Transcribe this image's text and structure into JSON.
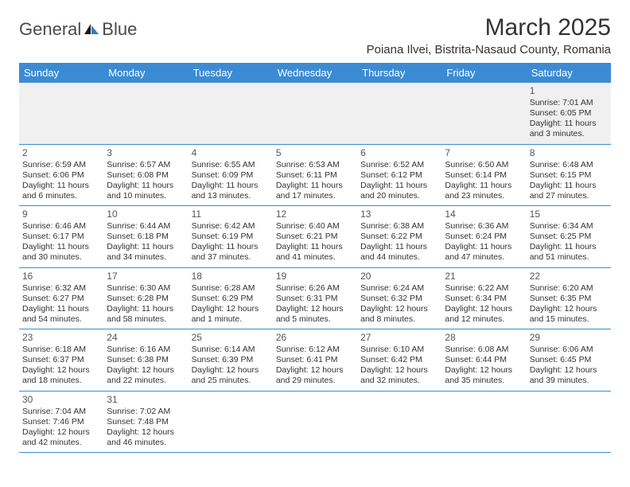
{
  "logo": {
    "textA": "General",
    "textB": "Blue"
  },
  "title": "March 2025",
  "location": "Poiana Ilvei, Bistrita-Nasaud County, Romania",
  "colors": {
    "headerBlue": "#3b8bd4",
    "logoBlue": "#2f7cc4",
    "text": "#333333",
    "grayBg": "#f0f0f0",
    "border": "#3b8bd4"
  },
  "weekdays": [
    "Sunday",
    "Monday",
    "Tuesday",
    "Wednesday",
    "Thursday",
    "Friday",
    "Saturday"
  ],
  "weeks": [
    [
      null,
      null,
      null,
      null,
      null,
      null,
      {
        "n": "1",
        "sr": "Sunrise: 7:01 AM",
        "ss": "Sunset: 6:05 PM",
        "dl1": "Daylight: 11 hours",
        "dl2": "and 3 minutes."
      }
    ],
    [
      {
        "n": "2",
        "sr": "Sunrise: 6:59 AM",
        "ss": "Sunset: 6:06 PM",
        "dl1": "Daylight: 11 hours",
        "dl2": "and 6 minutes."
      },
      {
        "n": "3",
        "sr": "Sunrise: 6:57 AM",
        "ss": "Sunset: 6:08 PM",
        "dl1": "Daylight: 11 hours",
        "dl2": "and 10 minutes."
      },
      {
        "n": "4",
        "sr": "Sunrise: 6:55 AM",
        "ss": "Sunset: 6:09 PM",
        "dl1": "Daylight: 11 hours",
        "dl2": "and 13 minutes."
      },
      {
        "n": "5",
        "sr": "Sunrise: 6:53 AM",
        "ss": "Sunset: 6:11 PM",
        "dl1": "Daylight: 11 hours",
        "dl2": "and 17 minutes."
      },
      {
        "n": "6",
        "sr": "Sunrise: 6:52 AM",
        "ss": "Sunset: 6:12 PM",
        "dl1": "Daylight: 11 hours",
        "dl2": "and 20 minutes."
      },
      {
        "n": "7",
        "sr": "Sunrise: 6:50 AM",
        "ss": "Sunset: 6:14 PM",
        "dl1": "Daylight: 11 hours",
        "dl2": "and 23 minutes."
      },
      {
        "n": "8",
        "sr": "Sunrise: 6:48 AM",
        "ss": "Sunset: 6:15 PM",
        "dl1": "Daylight: 11 hours",
        "dl2": "and 27 minutes."
      }
    ],
    [
      {
        "n": "9",
        "sr": "Sunrise: 6:46 AM",
        "ss": "Sunset: 6:17 PM",
        "dl1": "Daylight: 11 hours",
        "dl2": "and 30 minutes."
      },
      {
        "n": "10",
        "sr": "Sunrise: 6:44 AM",
        "ss": "Sunset: 6:18 PM",
        "dl1": "Daylight: 11 hours",
        "dl2": "and 34 minutes."
      },
      {
        "n": "11",
        "sr": "Sunrise: 6:42 AM",
        "ss": "Sunset: 6:19 PM",
        "dl1": "Daylight: 11 hours",
        "dl2": "and 37 minutes."
      },
      {
        "n": "12",
        "sr": "Sunrise: 6:40 AM",
        "ss": "Sunset: 6:21 PM",
        "dl1": "Daylight: 11 hours",
        "dl2": "and 41 minutes."
      },
      {
        "n": "13",
        "sr": "Sunrise: 6:38 AM",
        "ss": "Sunset: 6:22 PM",
        "dl1": "Daylight: 11 hours",
        "dl2": "and 44 minutes."
      },
      {
        "n": "14",
        "sr": "Sunrise: 6:36 AM",
        "ss": "Sunset: 6:24 PM",
        "dl1": "Daylight: 11 hours",
        "dl2": "and 47 minutes."
      },
      {
        "n": "15",
        "sr": "Sunrise: 6:34 AM",
        "ss": "Sunset: 6:25 PM",
        "dl1": "Daylight: 11 hours",
        "dl2": "and 51 minutes."
      }
    ],
    [
      {
        "n": "16",
        "sr": "Sunrise: 6:32 AM",
        "ss": "Sunset: 6:27 PM",
        "dl1": "Daylight: 11 hours",
        "dl2": "and 54 minutes."
      },
      {
        "n": "17",
        "sr": "Sunrise: 6:30 AM",
        "ss": "Sunset: 6:28 PM",
        "dl1": "Daylight: 11 hours",
        "dl2": "and 58 minutes."
      },
      {
        "n": "18",
        "sr": "Sunrise: 6:28 AM",
        "ss": "Sunset: 6:29 PM",
        "dl1": "Daylight: 12 hours",
        "dl2": "and 1 minute."
      },
      {
        "n": "19",
        "sr": "Sunrise: 6:26 AM",
        "ss": "Sunset: 6:31 PM",
        "dl1": "Daylight: 12 hours",
        "dl2": "and 5 minutes."
      },
      {
        "n": "20",
        "sr": "Sunrise: 6:24 AM",
        "ss": "Sunset: 6:32 PM",
        "dl1": "Daylight: 12 hours",
        "dl2": "and 8 minutes."
      },
      {
        "n": "21",
        "sr": "Sunrise: 6:22 AM",
        "ss": "Sunset: 6:34 PM",
        "dl1": "Daylight: 12 hours",
        "dl2": "and 12 minutes."
      },
      {
        "n": "22",
        "sr": "Sunrise: 6:20 AM",
        "ss": "Sunset: 6:35 PM",
        "dl1": "Daylight: 12 hours",
        "dl2": "and 15 minutes."
      }
    ],
    [
      {
        "n": "23",
        "sr": "Sunrise: 6:18 AM",
        "ss": "Sunset: 6:37 PM",
        "dl1": "Daylight: 12 hours",
        "dl2": "and 18 minutes."
      },
      {
        "n": "24",
        "sr": "Sunrise: 6:16 AM",
        "ss": "Sunset: 6:38 PM",
        "dl1": "Daylight: 12 hours",
        "dl2": "and 22 minutes."
      },
      {
        "n": "25",
        "sr": "Sunrise: 6:14 AM",
        "ss": "Sunset: 6:39 PM",
        "dl1": "Daylight: 12 hours",
        "dl2": "and 25 minutes."
      },
      {
        "n": "26",
        "sr": "Sunrise: 6:12 AM",
        "ss": "Sunset: 6:41 PM",
        "dl1": "Daylight: 12 hours",
        "dl2": "and 29 minutes."
      },
      {
        "n": "27",
        "sr": "Sunrise: 6:10 AM",
        "ss": "Sunset: 6:42 PM",
        "dl1": "Daylight: 12 hours",
        "dl2": "and 32 minutes."
      },
      {
        "n": "28",
        "sr": "Sunrise: 6:08 AM",
        "ss": "Sunset: 6:44 PM",
        "dl1": "Daylight: 12 hours",
        "dl2": "and 35 minutes."
      },
      {
        "n": "29",
        "sr": "Sunrise: 6:06 AM",
        "ss": "Sunset: 6:45 PM",
        "dl1": "Daylight: 12 hours",
        "dl2": "and 39 minutes."
      }
    ],
    [
      {
        "n": "30",
        "sr": "Sunrise: 7:04 AM",
        "ss": "Sunset: 7:46 PM",
        "dl1": "Daylight: 12 hours",
        "dl2": "and 42 minutes."
      },
      {
        "n": "31",
        "sr": "Sunrise: 7:02 AM",
        "ss": "Sunset: 7:48 PM",
        "dl1": "Daylight: 12 hours",
        "dl2": "and 46 minutes."
      },
      null,
      null,
      null,
      null,
      null
    ]
  ]
}
